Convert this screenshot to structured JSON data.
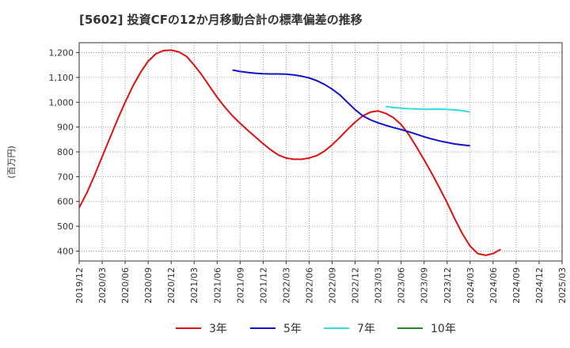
{
  "chart_data": {
    "type": "line",
    "title": "[5602]  投資CFの12か月移動合計の標準偏差の推移",
    "ylabel": "(百万円)",
    "xlabel": "",
    "ylim": [
      360,
      1240
    ],
    "y_ticks": [
      400,
      500,
      600,
      700,
      800,
      900,
      1000,
      1100,
      1200
    ],
    "y_tick_labels": [
      "400",
      "500",
      "600",
      "700",
      "800",
      "900",
      "1,000",
      "1,100",
      "1,200"
    ],
    "x_ticks": [
      "2019/12",
      "2020/03",
      "2020/06",
      "2020/09",
      "2020/12",
      "2021/03",
      "2021/06",
      "2021/09",
      "2021/12",
      "2022/03",
      "2022/06",
      "2022/09",
      "2022/12",
      "2023/03",
      "2023/06",
      "2023/09",
      "2023/12",
      "2024/03",
      "2024/06",
      "2024/09",
      "2024/12",
      "2025/03"
    ],
    "grid": true,
    "legend_position": "bottom",
    "series": [
      {
        "name": "3年",
        "color": "#dd1111",
        "points": [
          [
            "2019/12",
            575
          ],
          [
            "2020/01",
            635
          ],
          [
            "2020/02",
            705
          ],
          [
            "2020/03",
            780
          ],
          [
            "2020/04",
            855
          ],
          [
            "2020/05",
            930
          ],
          [
            "2020/06",
            1000
          ],
          [
            "2020/07",
            1065
          ],
          [
            "2020/08",
            1120
          ],
          [
            "2020/09",
            1165
          ],
          [
            "2020/10",
            1195
          ],
          [
            "2020/11",
            1208
          ],
          [
            "2020/12",
            1210
          ],
          [
            "2021/01",
            1203
          ],
          [
            "2021/02",
            1185
          ],
          [
            "2021/03",
            1150
          ],
          [
            "2021/04",
            1110
          ],
          [
            "2021/05",
            1065
          ],
          [
            "2021/06",
            1020
          ],
          [
            "2021/07",
            980
          ],
          [
            "2021/08",
            945
          ],
          [
            "2021/09",
            915
          ],
          [
            "2021/10",
            887
          ],
          [
            "2021/11",
            860
          ],
          [
            "2021/12",
            833
          ],
          [
            "2022/01",
            808
          ],
          [
            "2022/02",
            787
          ],
          [
            "2022/03",
            775
          ],
          [
            "2022/04",
            770
          ],
          [
            "2022/05",
            770
          ],
          [
            "2022/06",
            775
          ],
          [
            "2022/07",
            785
          ],
          [
            "2022/08",
            803
          ],
          [
            "2022/09",
            828
          ],
          [
            "2022/10",
            858
          ],
          [
            "2022/11",
            890
          ],
          [
            "2022/12",
            920
          ],
          [
            "2023/01",
            945
          ],
          [
            "2023/02",
            960
          ],
          [
            "2023/03",
            965
          ],
          [
            "2023/04",
            955
          ],
          [
            "2023/05",
            938
          ],
          [
            "2023/06",
            910
          ],
          [
            "2023/07",
            870
          ],
          [
            "2023/08",
            820
          ],
          [
            "2023/09",
            768
          ],
          [
            "2023/10",
            713
          ],
          [
            "2023/11",
            655
          ],
          [
            "2023/12",
            595
          ],
          [
            "2024/01",
            530
          ],
          [
            "2024/02",
            470
          ],
          [
            "2024/03",
            420
          ],
          [
            "2024/04",
            390
          ],
          [
            "2024/05",
            383
          ],
          [
            "2024/06",
            390
          ],
          [
            "2024/07",
            407
          ]
        ]
      },
      {
        "name": "5年",
        "color": "#1111cc",
        "points": [
          [
            "2021/08",
            1130
          ],
          [
            "2021/09",
            1124
          ],
          [
            "2021/10",
            1120
          ],
          [
            "2021/11",
            1117
          ],
          [
            "2021/12",
            1115
          ],
          [
            "2022/01",
            1114
          ],
          [
            "2022/02",
            1114
          ],
          [
            "2022/03",
            1113
          ],
          [
            "2022/04",
            1110
          ],
          [
            "2022/05",
            1105
          ],
          [
            "2022/06",
            1098
          ],
          [
            "2022/07",
            1087
          ],
          [
            "2022/08",
            1072
          ],
          [
            "2022/09",
            1053
          ],
          [
            "2022/10",
            1030
          ],
          [
            "2022/11",
            1000
          ],
          [
            "2022/12",
            970
          ],
          [
            "2023/01",
            945
          ],
          [
            "2023/02",
            929
          ],
          [
            "2023/03",
            917
          ],
          [
            "2023/04",
            907
          ],
          [
            "2023/05",
            898
          ],
          [
            "2023/06",
            890
          ],
          [
            "2023/07",
            881
          ],
          [
            "2023/08",
            871
          ],
          [
            "2023/09",
            861
          ],
          [
            "2023/10",
            852
          ],
          [
            "2023/11",
            844
          ],
          [
            "2023/12",
            838
          ],
          [
            "2024/01",
            832
          ],
          [
            "2024/02",
            828
          ],
          [
            "2024/03",
            825
          ]
        ]
      },
      {
        "name": "7年",
        "color": "#33dddd",
        "points": [
          [
            "2023/04",
            983
          ],
          [
            "2023/05",
            979
          ],
          [
            "2023/06",
            976
          ],
          [
            "2023/07",
            974
          ],
          [
            "2023/08",
            973
          ],
          [
            "2023/09",
            972
          ],
          [
            "2023/10",
            972
          ],
          [
            "2023/11",
            972
          ],
          [
            "2023/12",
            971
          ],
          [
            "2024/01",
            969
          ],
          [
            "2024/02",
            966
          ],
          [
            "2024/03",
            960
          ]
        ]
      },
      {
        "name": "10年",
        "color": "#228822",
        "points": []
      }
    ]
  }
}
